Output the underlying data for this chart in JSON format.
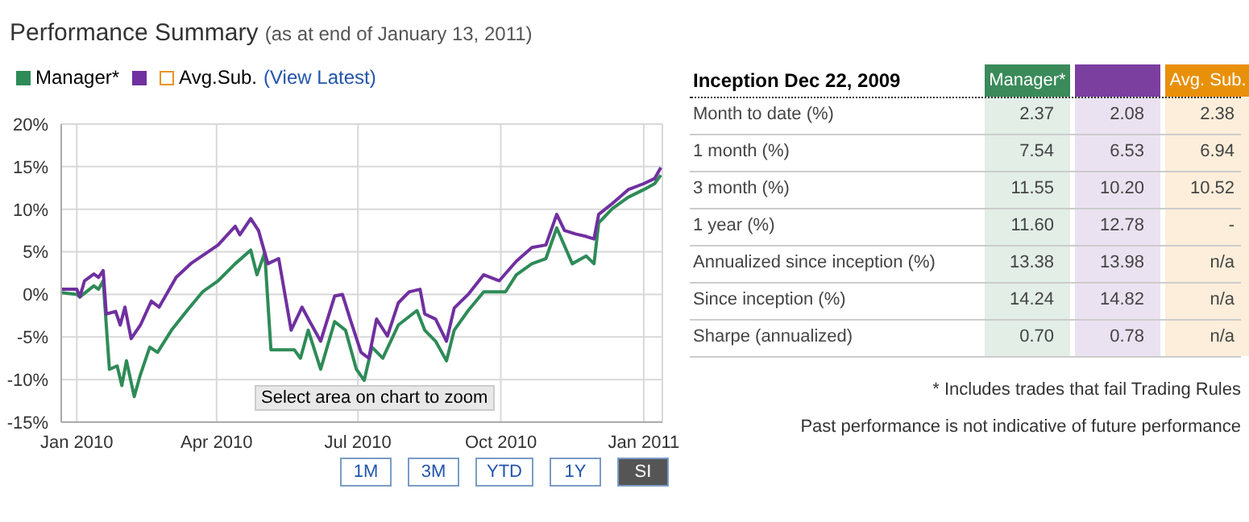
{
  "chart_data": [
    {
      "type": "line",
      "title": "Performance Summary",
      "subtitle": "(as at end of January 13, 2011)",
      "legend": "top left",
      "grid": true,
      "xlim": [
        "2009-12-22",
        "2011-01-13"
      ],
      "xticks": [
        {
          "value": "2010-01-01",
          "label": "Jan 2010"
        },
        {
          "value": "2010-04-01",
          "label": "Apr 2010"
        },
        {
          "value": "2010-07-01",
          "label": "Jul 2010"
        },
        {
          "value": "2010-10-01",
          "label": "Oct 2010"
        },
        {
          "value": "2011-01-01",
          "label": "Jan 2011"
        }
      ],
      "ylim": [
        -15,
        20
      ],
      "yticks": [
        {
          "value": -15,
          "label": "-15%"
        },
        {
          "value": -10,
          "label": "-10%"
        },
        {
          "value": -5,
          "label": "-5%"
        },
        {
          "value": 0,
          "label": "0%"
        },
        {
          "value": 5,
          "label": "5%"
        },
        {
          "value": 10,
          "label": "10%"
        },
        {
          "value": 15,
          "label": "15%"
        },
        {
          "value": 20,
          "label": "20%"
        }
      ],
      "series": [
        {
          "name": "Manager*",
          "color": "#2e8b57",
          "x": [
            "2009-12-22",
            "2010-01-01",
            "2010-01-03",
            "2010-01-12",
            "2010-01-15",
            "2010-01-18",
            "2010-01-22",
            "2010-01-27",
            "2010-01-30",
            "2010-02-02",
            "2010-02-07",
            "2010-02-11",
            "2010-02-17",
            "2010-02-22",
            "2010-03-03",
            "2010-03-13",
            "2010-03-23",
            "2010-04-02",
            "2010-04-13",
            "2010-04-23",
            "2010-04-27",
            "2010-05-02",
            "2010-05-06",
            "2010-05-21",
            "2010-05-25",
            "2010-05-30",
            "2010-06-07",
            "2010-06-16",
            "2010-06-23",
            "2010-06-30",
            "2010-07-05",
            "2010-07-10",
            "2010-07-17",
            "2010-07-27",
            "2010-08-08",
            "2010-08-13",
            "2010-08-20",
            "2010-08-27",
            "2010-09-01",
            "2010-09-10",
            "2010-09-20",
            "2010-10-04",
            "2010-10-11",
            "2010-10-21",
            "2010-10-30",
            "2010-11-06",
            "2010-11-16",
            "2010-11-25",
            "2010-11-30",
            "2010-12-03",
            "2010-12-12",
            "2010-12-22",
            "2011-01-01",
            "2011-01-08",
            "2011-01-12"
          ],
          "values": [
            0.2,
            0,
            -0.3,
            1,
            0.6,
            1.6,
            -8.8,
            -8.4,
            -10.7,
            -7.8,
            -12,
            -9.4,
            -6.2,
            -6.8,
            -4.2,
            -1.9,
            0.3,
            1.6,
            3.6,
            5.2,
            2.3,
            4.9,
            -6.5,
            -6.5,
            -7.5,
            -4.2,
            -8.8,
            -3.2,
            -4.2,
            -8.8,
            -10.1,
            -6.2,
            -7.5,
            -3.6,
            -1.9,
            -4.2,
            -5.5,
            -7.8,
            -4.2,
            -1.9,
            0.3,
            0.3,
            2.3,
            3.6,
            4.2,
            7.8,
            3.6,
            4.5,
            3.6,
            8.4,
            10.1,
            11.4,
            12.3,
            13,
            14
          ]
        },
        {
          "color": "#7030a0",
          "x": [
            "2009-12-22",
            "2010-01-01",
            "2010-01-03",
            "2010-01-06",
            "2010-01-12",
            "2010-01-15",
            "2010-01-18",
            "2010-01-20",
            "2010-01-26",
            "2010-01-29",
            "2010-02-01",
            "2010-02-05",
            "2010-02-11",
            "2010-02-18",
            "2010-02-23",
            "2010-03-06",
            "2010-03-16",
            "2010-03-25",
            "2010-04-02",
            "2010-04-13",
            "2010-04-16",
            "2010-04-23",
            "2010-04-28",
            "2010-05-04",
            "2010-05-11",
            "2010-05-19",
            "2010-05-26",
            "2010-05-31",
            "2010-06-07",
            "2010-06-16",
            "2010-06-21",
            "2010-06-26",
            "2010-07-03",
            "2010-07-08",
            "2010-07-13",
            "2010-07-20",
            "2010-07-27",
            "2010-08-03",
            "2010-08-10",
            "2010-08-13",
            "2010-08-20",
            "2010-08-27",
            "2010-09-01",
            "2010-09-10",
            "2010-09-20",
            "2010-09-30",
            "2010-10-11",
            "2010-10-21",
            "2010-10-30",
            "2010-11-06",
            "2010-11-11",
            "2010-11-18",
            "2010-11-25",
            "2010-11-30",
            "2010-12-03",
            "2010-12-12",
            "2010-12-22",
            "2011-01-01",
            "2011-01-08",
            "2011-01-12"
          ],
          "values": [
            0.6,
            0.6,
            -0.3,
            1.6,
            2.4,
            2,
            2.8,
            -2.3,
            -2,
            -3.6,
            -1.5,
            -5.2,
            -3.6,
            -0.8,
            -1.5,
            2,
            3.7,
            4.8,
            5.8,
            8,
            7,
            8.9,
            7.5,
            3.6,
            4.2,
            -4.2,
            -1.5,
            -3.2,
            -5.5,
            -0.2,
            0,
            -2.9,
            -6.8,
            -7.5,
            -2.9,
            -4.9,
            -1,
            0.3,
            0.6,
            -2.3,
            -2.9,
            -5.5,
            -1.6,
            0,
            2.3,
            1.6,
            3.9,
            5.5,
            5.8,
            9.4,
            7.5,
            7.1,
            6.8,
            6.5,
            9.4,
            10.7,
            12.3,
            13,
            13.6,
            14.9
          ]
        },
        {
          "name": "Avg.Sub.",
          "color": "#e69522"
        }
      ],
      "annotations": [
        "(View Latest)",
        "Select area on chart to zoom",
        "1M",
        "3M",
        "YTD",
        "1Y",
        "SI"
      ]
    },
    {
      "type": "heatmap",
      "title": "Inception Dec 22, 2009",
      "categories": [
        "Manager*",
        null,
        "Avg. Sub."
      ],
      "colors": [
        "#3a8a5a",
        "#7b3fa0",
        "#e8900a"
      ],
      "y_categories": [
        "Month to date (%)",
        "1 month (%)",
        "3 month (%)",
        "1 year (%)",
        "Annualized since inception (%)",
        "Since inception (%)",
        "Sharpe (annualized)"
      ],
      "cells": [
        [
          2.37,
          2.08,
          2.38
        ],
        [
          7.54,
          6.53,
          6.94
        ],
        [
          11.55,
          10.2,
          10.52
        ],
        [
          11.6,
          12.78,
          null
        ],
        [
          13.38,
          13.98,
          null
        ],
        [
          14.24,
          14.82,
          null
        ],
        [
          0.7,
          0.78,
          null
        ]
      ],
      "cell_labels": [
        [
          "2.37",
          "2.08",
          "2.38"
        ],
        [
          "7.54",
          "6.53",
          "6.94"
        ],
        [
          "11.55",
          "10.20",
          "10.52"
        ],
        [
          "11.60",
          "12.78",
          "-"
        ],
        [
          "13.38",
          "13.98",
          "n/a"
        ],
        [
          "14.24",
          "14.82",
          "n/a"
        ],
        [
          "0.70",
          "0.78",
          "n/a"
        ]
      ],
      "annotations": [
        "* Includes trades that fail Trading Rules",
        "Past performance is not indicative of future performance"
      ]
    }
  ]
}
